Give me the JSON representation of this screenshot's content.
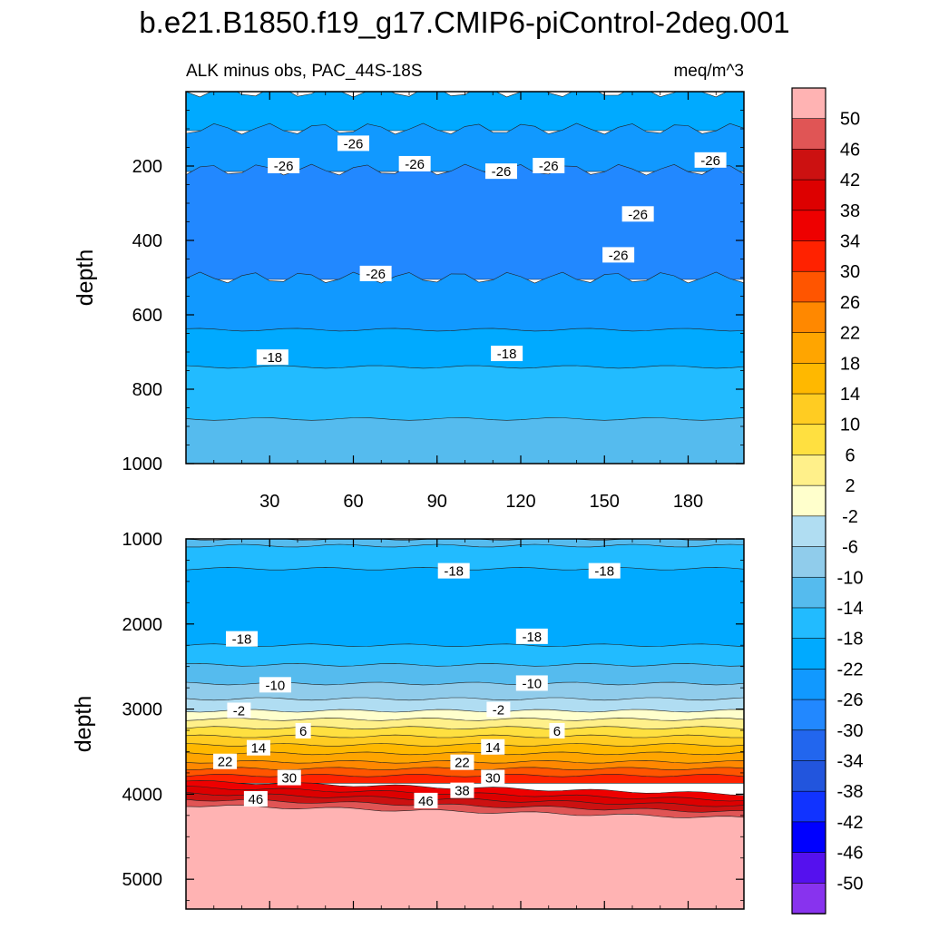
{
  "title": "b.e21.B1850.f19_g17.CMIP6-piControl-2deg.001",
  "chart_data": [
    {
      "type": "contour",
      "panel": "upper",
      "subtitle_left": "ALK minus obs, PAC_44S-18S",
      "subtitle_right": "meq/m^3",
      "ylabel": "depth",
      "xlim": [
        0,
        200
      ],
      "ylim": [
        1000,
        0
      ],
      "x_ticks": [
        30,
        60,
        90,
        120,
        150,
        180
      ],
      "y_ticks": [
        200,
        400,
        600,
        800,
        1000
      ],
      "bands": [
        {
          "from": 0,
          "to": 100,
          "value": -22
        },
        {
          "from": 100,
          "to": 210,
          "value": -26
        },
        {
          "from": 210,
          "to": 500,
          "value": -30
        },
        {
          "from": 500,
          "to": 640,
          "value": -26
        },
        {
          "from": 640,
          "to": 740,
          "value": -22
        },
        {
          "from": 740,
          "to": 880,
          "value": -18
        },
        {
          "from": 880,
          "to": 1000,
          "value": -14
        }
      ],
      "contour_labels": [
        {
          "x": 35,
          "depth": 200,
          "text": "-26"
        },
        {
          "x": 60,
          "depth": 140,
          "text": "-26"
        },
        {
          "x": 82,
          "depth": 195,
          "text": "-26"
        },
        {
          "x": 113,
          "depth": 215,
          "text": "-26"
        },
        {
          "x": 130,
          "depth": 200,
          "text": "-26"
        },
        {
          "x": 162,
          "depth": 330,
          "text": "-26"
        },
        {
          "x": 155,
          "depth": 440,
          "text": "-26"
        },
        {
          "x": 188,
          "depth": 185,
          "text": "-26"
        },
        {
          "x": 68,
          "depth": 490,
          "text": "-26"
        },
        {
          "x": 31,
          "depth": 715,
          "text": "-18"
        },
        {
          "x": 115,
          "depth": 705,
          "text": "-18"
        }
      ]
    },
    {
      "type": "contour",
      "panel": "lower",
      "ylabel": "depth",
      "xlim": [
        0,
        200
      ],
      "ylim": [
        5350,
        1000
      ],
      "y_ticks": [
        1000,
        2000,
        3000,
        4000,
        5000
      ],
      "bands": [
        {
          "from": 1000,
          "to": 1080,
          "value": -14
        },
        {
          "from": 1080,
          "to": 1350,
          "value": -18
        },
        {
          "from": 1350,
          "to": 2250,
          "value": -22
        },
        {
          "from": 2250,
          "to": 2480,
          "value": -18
        },
        {
          "from": 2480,
          "to": 2700,
          "value": -14
        },
        {
          "from": 2700,
          "to": 2880,
          "value": -10
        },
        {
          "from": 2880,
          "to": 3020,
          "value": -6
        },
        {
          "from": 3020,
          "to": 3120,
          "value": -2
        },
        {
          "from": 3120,
          "to": 3220,
          "value": 2
        },
        {
          "from": 3220,
          "to": 3320,
          "value": 6
        },
        {
          "from": 3320,
          "to": 3420,
          "value": 10
        },
        {
          "from": 3420,
          "to": 3520,
          "value": 14
        },
        {
          "from": 3520,
          "to": 3620,
          "value": 18
        },
        {
          "from": 3620,
          "to": 3700,
          "value": 22
        },
        {
          "from": 3700,
          "to": 3780,
          "value": 26
        },
        {
          "from": 3780,
          "to": 3850,
          "value": 30
        },
        {
          "from": 3850,
          "to": 3920,
          "value": 34
        },
        {
          "from": 3920,
          "to": 3990,
          "value": 38
        },
        {
          "from": 3990,
          "to": 4060,
          "value": 42
        },
        {
          "from": 4060,
          "to": 4130,
          "value": 46
        },
        {
          "from": 4130,
          "to": 5350,
          "value": 50
        }
      ],
      "contour_labels": [
        {
          "x": 96,
          "depth": 1380,
          "text": "-18"
        },
        {
          "x": 150,
          "depth": 1380,
          "text": "-18"
        },
        {
          "x": 20,
          "depth": 2180,
          "text": "-18"
        },
        {
          "x": 124,
          "depth": 2150,
          "text": "-18"
        },
        {
          "x": 32,
          "depth": 2720,
          "text": "-10"
        },
        {
          "x": 124,
          "depth": 2700,
          "text": "-10"
        },
        {
          "x": 19,
          "depth": 3020,
          "text": "-2"
        },
        {
          "x": 112,
          "depth": 3010,
          "text": "-2"
        },
        {
          "x": 42,
          "depth": 3260,
          "text": "6"
        },
        {
          "x": 133,
          "depth": 3260,
          "text": "6"
        },
        {
          "x": 26,
          "depth": 3460,
          "text": "14"
        },
        {
          "x": 110,
          "depth": 3450,
          "text": "14"
        },
        {
          "x": 14,
          "depth": 3620,
          "text": "22"
        },
        {
          "x": 99,
          "depth": 3630,
          "text": "22"
        },
        {
          "x": 37,
          "depth": 3810,
          "text": "30"
        },
        {
          "x": 110,
          "depth": 3810,
          "text": "30"
        },
        {
          "x": 99,
          "depth": 3960,
          "text": "38"
        },
        {
          "x": 25,
          "depth": 4060,
          "text": "46"
        },
        {
          "x": 86,
          "depth": 4080,
          "text": "46"
        }
      ]
    }
  ],
  "colorbar": {
    "labels": [
      "50",
      "46",
      "42",
      "38",
      "34",
      "30",
      "26",
      "22",
      "18",
      "14",
      "10",
      "6",
      "2",
      "-2",
      "-6",
      "-10",
      "-14",
      "-18",
      "-22",
      "-26",
      "-30",
      "-34",
      "-38",
      "-42",
      "-46",
      "-50"
    ],
    "colors": [
      "#FFB3B3",
      "#E05555",
      "#CC1111",
      "#DD0000",
      "#EE0000",
      "#FF2200",
      "#FF5500",
      "#FF8800",
      "#FFA500",
      "#FFB800",
      "#FFCC22",
      "#FFE040",
      "#FFF08A",
      "#FFFFCC",
      "#B0DDF2",
      "#90CCEB",
      "#55BBEE",
      "#22BBFF",
      "#00AAFF",
      "#1199FF",
      "#2288FF",
      "#2266EE",
      "#2255DD",
      "#1133FF",
      "#0000FF",
      "#5511EE",
      "#8833EE"
    ]
  }
}
